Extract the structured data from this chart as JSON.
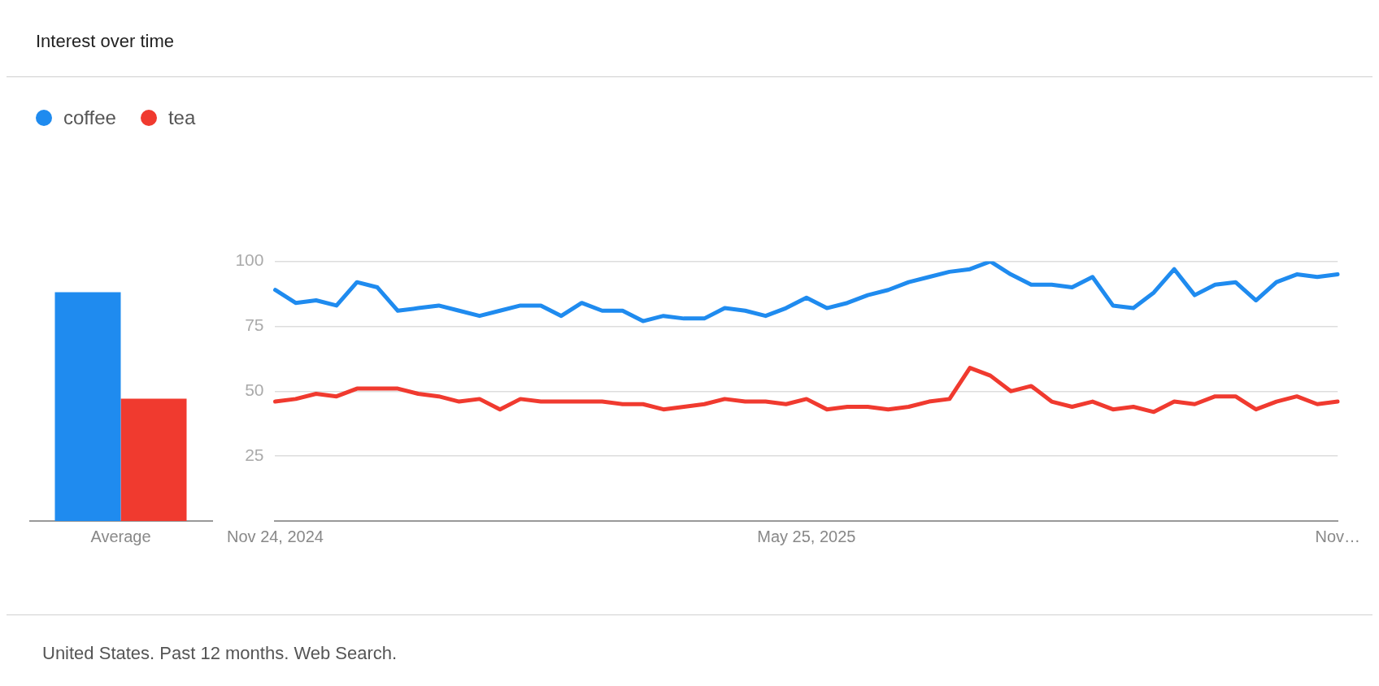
{
  "chart_data": [
    {
      "type": "bar",
      "title": "Interest over time",
      "categories": [
        "Average"
      ],
      "ylim": [
        0,
        100
      ],
      "tick_labels": "x",
      "series": [
        {
          "color": "#1f8bef",
          "values": [
            88
          ]
        },
        {
          "color": "#f03a2f",
          "values": [
            47
          ]
        }
      ]
    },
    {
      "type": "line",
      "categories": [
        "Nov 24, 2024",
        null,
        null,
        null,
        null,
        null,
        null,
        null,
        null,
        null,
        null,
        null,
        null,
        null,
        null,
        null,
        null,
        null,
        null,
        null,
        null,
        null,
        null,
        null,
        null,
        null,
        "May 25, 2025",
        null,
        null,
        null,
        null,
        null,
        null,
        null,
        null,
        null,
        null,
        null,
        null,
        null,
        null,
        null,
        null,
        null,
        null,
        null,
        null,
        null,
        null,
        null,
        null,
        null,
        "Nov…"
      ],
      "ylim": [
        0,
        100
      ],
      "yticks": [
        25,
        50,
        75,
        100
      ],
      "grid": "y",
      "legend": "top left",
      "marker": "none",
      "line_style": "solid",
      "annotations": [
        "United States. Past 12 months. Web Search."
      ],
      "series": [
        {
          "name": "coffee",
          "color": "#1f8bef",
          "values": [
            89,
            84,
            85,
            83,
            92,
            90,
            81,
            82,
            83,
            81,
            79,
            81,
            83,
            83,
            79,
            84,
            81,
            81,
            77,
            79,
            78,
            78,
            82,
            81,
            79,
            82,
            86,
            82,
            84,
            87,
            89,
            92,
            94,
            96,
            97,
            100,
            95,
            91,
            91,
            90,
            94,
            83,
            82,
            88,
            97,
            87,
            91,
            92,
            85,
            92,
            95,
            94,
            95
          ]
        },
        {
          "name": "tea",
          "color": "#f03a2f",
          "values": [
            46,
            47,
            49,
            48,
            51,
            51,
            51,
            49,
            48,
            46,
            47,
            43,
            47,
            46,
            46,
            46,
            46,
            45,
            45,
            43,
            44,
            45,
            47,
            46,
            46,
            45,
            47,
            43,
            44,
            44,
            43,
            44,
            46,
            47,
            59,
            56,
            50,
            52,
            46,
            44,
            46,
            43,
            44,
            42,
            46,
            45,
            48,
            48,
            43,
            46,
            48,
            45,
            46
          ]
        }
      ]
    }
  ]
}
